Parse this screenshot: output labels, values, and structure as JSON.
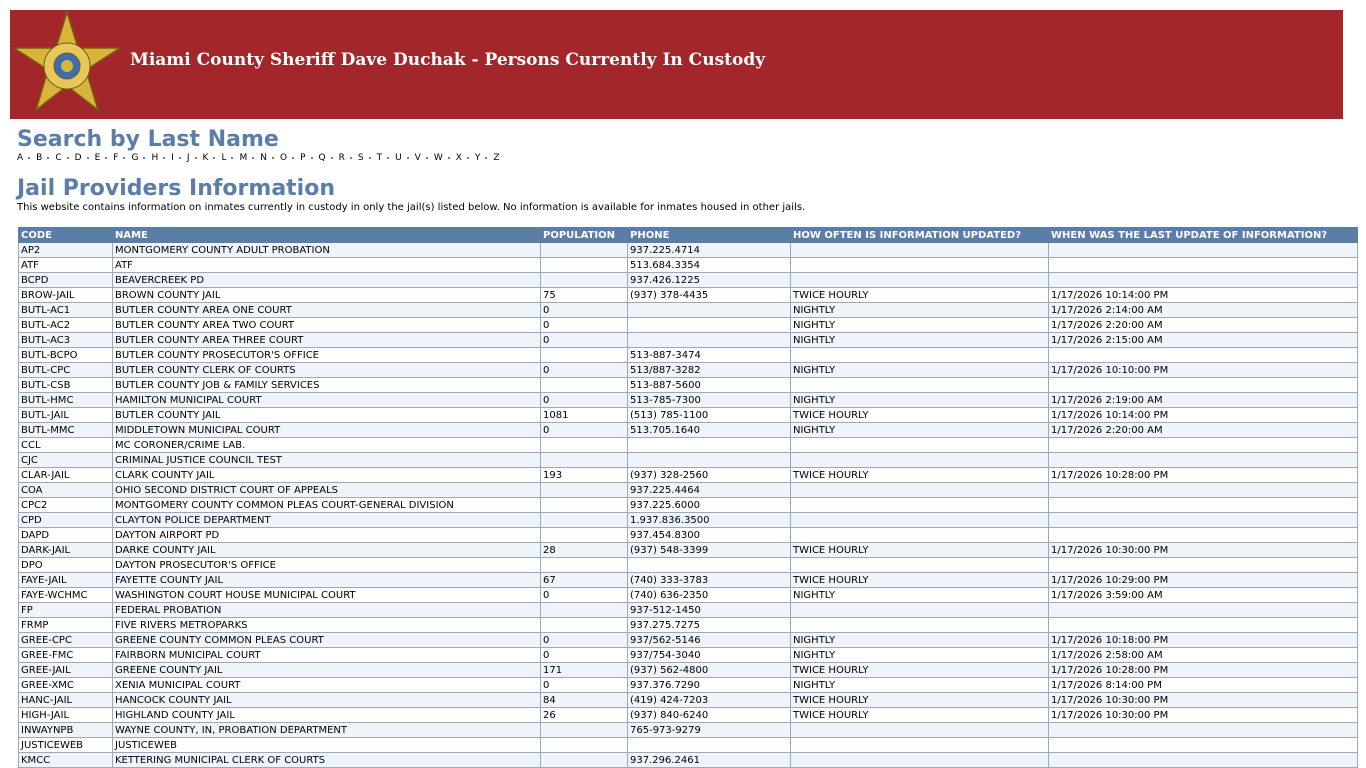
{
  "header": {
    "title": "Miami County Sheriff Dave Duchak - Persons Currently In Custody"
  },
  "search": {
    "title": "Search by Last Name",
    "letters": [
      "A",
      "B",
      "C",
      "D",
      "E",
      "F",
      "G",
      "H",
      "I",
      "J",
      "K",
      "L",
      "M",
      "N",
      "O",
      "P",
      "Q",
      "R",
      "S",
      "T",
      "U",
      "V",
      "W",
      "X",
      "Y",
      "Z"
    ]
  },
  "providers": {
    "title": "Jail Providers Information",
    "description": "This website contains information on inmates currently in custody in only the jail(s) listed below. No information is available for inmates housed in other jails."
  },
  "table": {
    "columns": [
      "CODE",
      "NAME",
      "POPULATION",
      "PHONE",
      "HOW OFTEN IS INFORMATION UPDATED?",
      "WHEN WAS THE LAST UPDATE OF INFORMATION?"
    ],
    "rows": [
      [
        "AP2",
        "MONTGOMERY COUNTY ADULT PROBATION",
        null,
        "937.225.4714",
        null,
        null
      ],
      [
        "ATF",
        "ATF",
        null,
        "513.684.3354",
        null,
        null
      ],
      [
        "BCPD",
        "BEAVERCREEK PD",
        null,
        "937.426.1225",
        null,
        null
      ],
      [
        "BROW-JAIL",
        "BROWN COUNTY JAIL",
        75,
        "(937) 378-4435",
        "TWICE HOURLY",
        "1/17/2026 10:14:00 PM"
      ],
      [
        "BUTL-AC1",
        "BUTLER COUNTY AREA ONE COURT",
        0,
        null,
        "NIGHTLY",
        "1/17/2026 2:14:00 AM"
      ],
      [
        "BUTL-AC2",
        "BUTLER COUNTY AREA TWO COURT",
        0,
        null,
        "NIGHTLY",
        "1/17/2026 2:20:00 AM"
      ],
      [
        "BUTL-AC3",
        "BUTLER COUNTY AREA THREE COURT",
        0,
        null,
        "NIGHTLY",
        "1/17/2026 2:15:00 AM"
      ],
      [
        "BUTL-BCPO",
        "BUTLER COUNTY PROSECUTOR'S OFFICE",
        null,
        "513-887-3474",
        null,
        null
      ],
      [
        "BUTL-CPC",
        "BUTLER COUNTY CLERK OF COURTS",
        0,
        "513/887-3282",
        "NIGHTLY",
        "1/17/2026 10:10:00 PM"
      ],
      [
        "BUTL-CSB",
        "BUTLER COUNTY JOB & FAMILY SERVICES",
        null,
        "513-887-5600",
        null,
        null
      ],
      [
        "BUTL-HMC",
        "HAMILTON MUNICIPAL COURT",
        0,
        "513-785-7300",
        "NIGHTLY",
        "1/17/2026 2:19:00 AM"
      ],
      [
        "BUTL-JAIL",
        "BUTLER COUNTY JAIL",
        1081,
        "(513) 785-1100",
        "TWICE HOURLY",
        "1/17/2026 10:14:00 PM"
      ],
      [
        "BUTL-MMC",
        "MIDDLETOWN MUNICIPAL COURT",
        0,
        "513.705.1640",
        "NIGHTLY",
        "1/17/2026 2:20:00 AM"
      ],
      [
        "CCL",
        "MC CORONER/CRIME LAB.",
        null,
        null,
        null,
        null
      ],
      [
        "CJC",
        "CRIMINAL JUSTICE COUNCIL TEST",
        null,
        null,
        null,
        null
      ],
      [
        "CLAR-JAIL",
        "CLARK COUNTY JAIL",
        193,
        "(937) 328-2560",
        "TWICE HOURLY",
        "1/17/2026 10:28:00 PM"
      ],
      [
        "COA",
        "OHIO SECOND DISTRICT COURT OF APPEALS",
        null,
        "937.225.4464",
        null,
        null
      ],
      [
        "CPC2",
        "MONTGOMERY COUNTY COMMON PLEAS COURT-GENERAL DIVISION",
        null,
        "937.225.6000",
        null,
        null
      ],
      [
        "CPD",
        "CLAYTON POLICE DEPARTMENT",
        null,
        "1.937.836.3500",
        null,
        null
      ],
      [
        "DAPD",
        "DAYTON AIRPORT PD",
        null,
        "937.454.8300",
        null,
        null
      ],
      [
        "DARK-JAIL",
        "DARKE COUNTY JAIL",
        28,
        "(937) 548-3399",
        "TWICE HOURLY",
        "1/17/2026 10:30:00 PM"
      ],
      [
        "DPO",
        "DAYTON PROSECUTOR'S OFFICE",
        null,
        null,
        null,
        null
      ],
      [
        "FAYE-JAIL",
        "FAYETTE COUNTY JAIL",
        67,
        "(740) 333-3783",
        "TWICE HOURLY",
        "1/17/2026 10:29:00 PM"
      ],
      [
        "FAYE-WCHMC",
        "WASHINGTON COURT HOUSE MUNICIPAL COURT",
        0,
        "(740) 636-2350",
        "NIGHTLY",
        "1/17/2026 3:59:00 AM"
      ],
      [
        "FP",
        "FEDERAL PROBATION",
        null,
        "937-512-1450",
        null,
        null
      ],
      [
        "FRMP",
        "FIVE RIVERS METROPARKS",
        null,
        "937.275.7275",
        null,
        null
      ],
      [
        "GREE-CPC",
        "GREENE COUNTY COMMON PLEAS COURT",
        0,
        "937/562-5146",
        "NIGHTLY",
        "1/17/2026 10:18:00 PM"
      ],
      [
        "GREE-FMC",
        "FAIRBORN MUNICIPAL COURT",
        0,
        "937/754-3040",
        "NIGHTLY",
        "1/17/2026 2:58:00 AM"
      ],
      [
        "GREE-JAIL",
        "GREENE COUNTY JAIL",
        171,
        "(937) 562-4800",
        "TWICE HOURLY",
        "1/17/2026 10:28:00 PM"
      ],
      [
        "GREE-XMC",
        "XENIA MUNICIPAL COURT",
        0,
        "937.376.7290",
        "NIGHTLY",
        "1/17/2026 8:14:00 PM"
      ],
      [
        "HANC-JAIL",
        "HANCOCK COUNTY JAIL",
        84,
        "(419) 424-7203",
        "TWICE HOURLY",
        "1/17/2026 10:30:00 PM"
      ],
      [
        "HIGH-JAIL",
        "HIGHLAND COUNTY JAIL",
        26,
        "(937) 840-6240",
        "TWICE HOURLY",
        "1/17/2026 10:30:00 PM"
      ],
      [
        "INWAYNPB",
        "WAYNE COUNTY, IN, PROBATION DEPARTMENT",
        null,
        "765-973-9279",
        null,
        null
      ],
      [
        "JUSTICEWEB",
        "JUSTICEWEB",
        null,
        null,
        null,
        null
      ],
      [
        "KMCC",
        "KETTERING MUNICIPAL CLERK OF COURTS",
        null,
        "937.296.2461",
        null,
        null
      ]
    ]
  }
}
